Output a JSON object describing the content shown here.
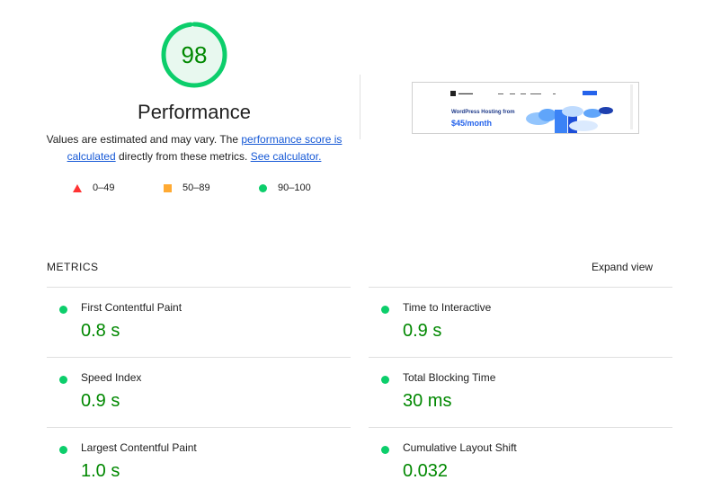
{
  "score": {
    "value": "98",
    "percent": 98,
    "color": "#0cce6b"
  },
  "title": "Performance",
  "description": {
    "prefix": "Values are estimated and may vary. The ",
    "link1": "performance score is calculated",
    "middle": " directly from these metrics. ",
    "link2": "See calculator."
  },
  "legend": [
    {
      "shape": "triangle",
      "color": "#ff3333",
      "label": "0–49"
    },
    {
      "shape": "square",
      "color": "#ffaa33",
      "label": "50–89"
    },
    {
      "shape": "circle",
      "color": "#0cce6b",
      "label": "90–100"
    }
  ],
  "screenshot": {
    "headline": "WordPress Hosting from",
    "price": "$45/month"
  },
  "metrics_section": {
    "label": "METRICS",
    "expand": "Expand view"
  },
  "metrics": [
    {
      "name": "First Contentful Paint",
      "value": "0.8 s"
    },
    {
      "name": "Time to Interactive",
      "value": "0.9 s"
    },
    {
      "name": "Speed Index",
      "value": "0.9 s"
    },
    {
      "name": "Total Blocking Time",
      "value": "30 ms"
    },
    {
      "name": "Largest Contentful Paint",
      "value": "1.0 s"
    },
    {
      "name": "Cumulative Layout Shift",
      "value": "0.032"
    }
  ],
  "colors": {
    "pass": "#0cce6b",
    "pass_text": "#008800",
    "link": "#1558d6"
  }
}
